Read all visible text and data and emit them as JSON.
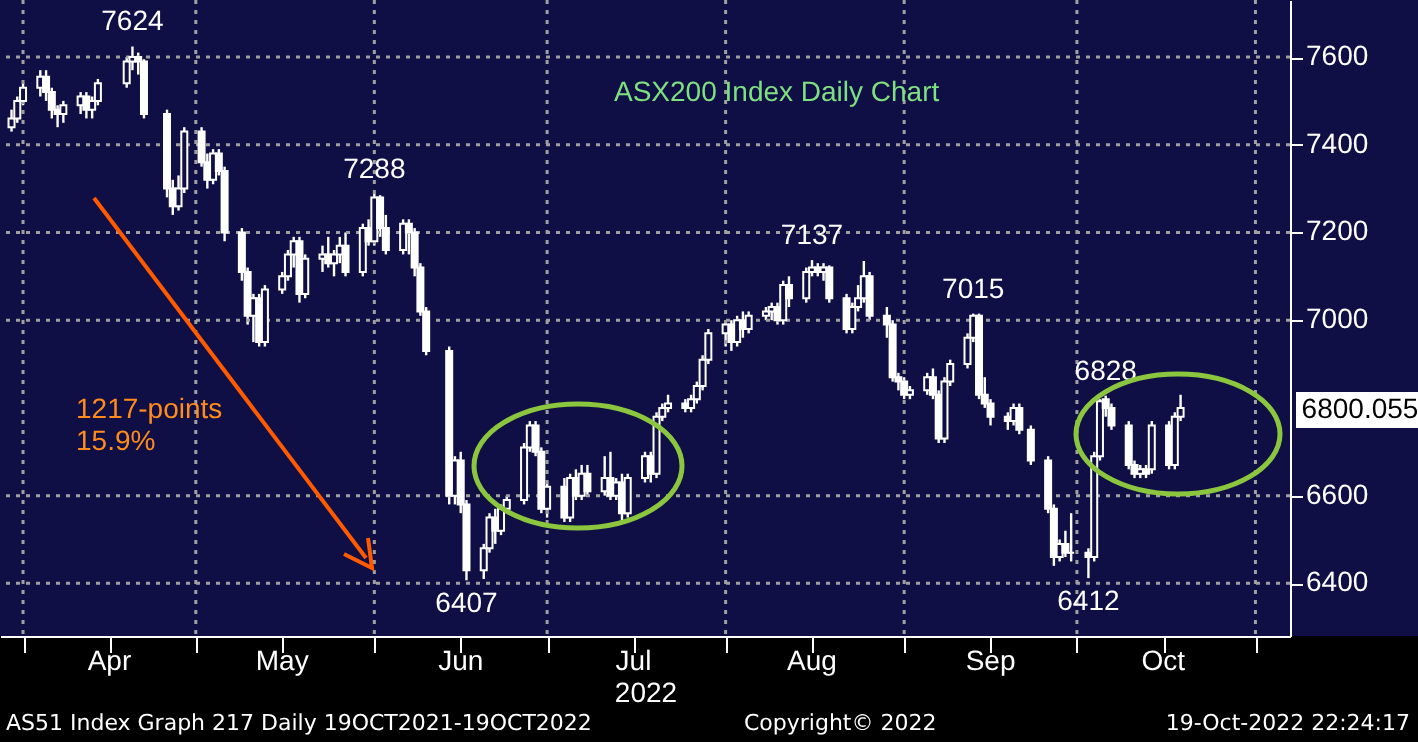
{
  "chart_data": {
    "type": "candlestick",
    "title": "ASX200 Index Daily Chart",
    "xlabel": "2022",
    "color": "#ffffff",
    "grid": true,
    "x": [
      "2022-03-30",
      "2022-03-31",
      "2022-04-01",
      "2022-04-04",
      "2022-04-05",
      "2022-04-06",
      "2022-04-07",
      "2022-04-08",
      "2022-04-11",
      "2022-04-12",
      "2022-04-13",
      "2022-04-14",
      "2022-04-19",
      "2022-04-20",
      "2022-04-21",
      "2022-04-22",
      "2022-04-26",
      "2022-04-27",
      "2022-04-28",
      "2022-04-29",
      "2022-05-02",
      "2022-05-03",
      "2022-05-04",
      "2022-05-05",
      "2022-05-06",
      "2022-05-09",
      "2022-05-10",
      "2022-05-11",
      "2022-05-12",
      "2022-05-13",
      "2022-05-16",
      "2022-05-17",
      "2022-05-18",
      "2022-05-19",
      "2022-05-20",
      "2022-05-23",
      "2022-05-24",
      "2022-05-25",
      "2022-05-26",
      "2022-05-27",
      "2022-05-30",
      "2022-05-31",
      "2022-06-01",
      "2022-06-02",
      "2022-06-03",
      "2022-06-06",
      "2022-06-07",
      "2022-06-08",
      "2022-06-09",
      "2022-06-10",
      "2022-06-14",
      "2022-06-15",
      "2022-06-16",
      "2022-06-17",
      "2022-06-20",
      "2022-06-21",
      "2022-06-22",
      "2022-06-23",
      "2022-06-24",
      "2022-06-27",
      "2022-06-28",
      "2022-06-29",
      "2022-06-30",
      "2022-07-01",
      "2022-07-04",
      "2022-07-05",
      "2022-07-06",
      "2022-07-07",
      "2022-07-08",
      "2022-07-11",
      "2022-07-12",
      "2022-07-13",
      "2022-07-14",
      "2022-07-15",
      "2022-07-18",
      "2022-07-19",
      "2022-07-20",
      "2022-07-21",
      "2022-07-22",
      "2022-07-25",
      "2022-07-26",
      "2022-07-27",
      "2022-07-28",
      "2022-07-29",
      "2022-08-01",
      "2022-08-02",
      "2022-08-03",
      "2022-08-04",
      "2022-08-05",
      "2022-08-08",
      "2022-08-09",
      "2022-08-10",
      "2022-08-11",
      "2022-08-12",
      "2022-08-15",
      "2022-08-16",
      "2022-08-17",
      "2022-08-18",
      "2022-08-19",
      "2022-08-22",
      "2022-08-23",
      "2022-08-24",
      "2022-08-25",
      "2022-08-26",
      "2022-08-29",
      "2022-08-30",
      "2022-08-31",
      "2022-09-01",
      "2022-09-02",
      "2022-09-05",
      "2022-09-06",
      "2022-09-07",
      "2022-09-08",
      "2022-09-09",
      "2022-09-12",
      "2022-09-13",
      "2022-09-14",
      "2022-09-15",
      "2022-09-16",
      "2022-09-19",
      "2022-09-20",
      "2022-09-21",
      "2022-09-23",
      "2022-09-26",
      "2022-09-27",
      "2022-09-28",
      "2022-09-29",
      "2022-09-30",
      "2022-10-03",
      "2022-10-04",
      "2022-10-05",
      "2022-10-06",
      "2022-10-07",
      "2022-10-10",
      "2022-10-11",
      "2022-10-12",
      "2022-10-13",
      "2022-10-14",
      "2022-10-17",
      "2022-10-18",
      "2022-10-19"
    ],
    "ohlc": [
      [
        7440,
        7480,
        7430,
        7460
      ],
      [
        7460,
        7510,
        7450,
        7500
      ],
      [
        7500,
        7540,
        7490,
        7530
      ],
      [
        7530,
        7570,
        7510,
        7555
      ],
      [
        7555,
        7570,
        7500,
        7520
      ],
      [
        7520,
        7530,
        7460,
        7480
      ],
      [
        7480,
        7490,
        7440,
        7470
      ],
      [
        7470,
        7500,
        7450,
        7490
      ],
      [
        7490,
        7520,
        7470,
        7510
      ],
      [
        7510,
        7520,
        7460,
        7480
      ],
      [
        7480,
        7510,
        7460,
        7500
      ],
      [
        7500,
        7550,
        7490,
        7540
      ],
      [
        7540,
        7600,
        7530,
        7590
      ],
      [
        7590,
        7624,
        7570,
        7600
      ],
      [
        7600,
        7610,
        7560,
        7590
      ],
      [
        7590,
        7595,
        7460,
        7470
      ],
      [
        7470,
        7480,
        7280,
        7300
      ],
      [
        7300,
        7320,
        7240,
        7260
      ],
      [
        7260,
        7330,
        7250,
        7300
      ],
      [
        7300,
        7440,
        7290,
        7430
      ],
      [
        7430,
        7440,
        7350,
        7360
      ],
      [
        7360,
        7380,
        7300,
        7320
      ],
      [
        7320,
        7390,
        7310,
        7380
      ],
      [
        7380,
        7390,
        7330,
        7340
      ],
      [
        7340,
        7350,
        7180,
        7200
      ],
      [
        7200,
        7210,
        7090,
        7110
      ],
      [
        7110,
        7120,
        6990,
        7010
      ],
      [
        7010,
        7060,
        6950,
        7050
      ],
      [
        7050,
        7060,
        6940,
        6950
      ],
      [
        6950,
        7080,
        6940,
        7070
      ],
      [
        7070,
        7110,
        7060,
        7100
      ],
      [
        7100,
        7160,
        7090,
        7150
      ],
      [
        7150,
        7190,
        7120,
        7180
      ],
      [
        7180,
        7190,
        7040,
        7060
      ],
      [
        7060,
        7150,
        7050,
        7140
      ],
      [
        7140,
        7170,
        7110,
        7150
      ],
      [
        7150,
        7190,
        7120,
        7130
      ],
      [
        7130,
        7160,
        7100,
        7150
      ],
      [
        7150,
        7190,
        7130,
        7170
      ],
      [
        7170,
        7200,
        7100,
        7110
      ],
      [
        7110,
        7220,
        7100,
        7210
      ],
      [
        7210,
        7230,
        7170,
        7180
      ],
      [
        7180,
        7288,
        7170,
        7280
      ],
      [
        7280,
        7285,
        7190,
        7210
      ],
      [
        7210,
        7240,
        7150,
        7160
      ],
      [
        7160,
        7230,
        7150,
        7220
      ],
      [
        7220,
        7230,
        7150,
        7200
      ],
      [
        7200,
        7210,
        7100,
        7120
      ],
      [
        7120,
        7130,
        7010,
        7020
      ],
      [
        7020,
        7030,
        6920,
        6930
      ],
      [
        6930,
        6940,
        6580,
        6600
      ],
      [
        6600,
        6690,
        6580,
        6680
      ],
      [
        6680,
        6700,
        6560,
        6580
      ],
      [
        6580,
        6590,
        6407,
        6430
      ],
      [
        6430,
        6490,
        6410,
        6480
      ],
      [
        6480,
        6560,
        6470,
        6550
      ],
      [
        6550,
        6570,
        6490,
        6520
      ],
      [
        6520,
        6580,
        6510,
        6570
      ],
      [
        6570,
        6600,
        6560,
        6590
      ],
      [
        6590,
        6720,
        6580,
        6710
      ],
      [
        6710,
        6770,
        6700,
        6760
      ],
      [
        6760,
        6770,
        6690,
        6700
      ],
      [
        6700,
        6710,
        6560,
        6570
      ],
      [
        6570,
        6630,
        6550,
        6620
      ],
      [
        6620,
        6640,
        6540,
        6550
      ],
      [
        6550,
        6650,
        6540,
        6640
      ],
      [
        6640,
        6660,
        6590,
        6600
      ],
      [
        6600,
        6670,
        6590,
        6650
      ],
      [
        6650,
        6670,
        6600,
        6610
      ],
      [
        6610,
        6690,
        6600,
        6640
      ],
      [
        6640,
        6700,
        6590,
        6600
      ],
      [
        6600,
        6640,
        6590,
        6630
      ],
      [
        6630,
        6650,
        6540,
        6560
      ],
      [
        6560,
        6650,
        6550,
        6640
      ],
      [
        6640,
        6700,
        6630,
        6690
      ],
      [
        6690,
        6700,
        6630,
        6650
      ],
      [
        6650,
        6790,
        6640,
        6780
      ],
      [
        6780,
        6810,
        6770,
        6800
      ],
      [
        6800,
        6830,
        6790,
        6810
      ],
      [
        6810,
        6820,
        6790,
        6800
      ],
      [
        6800,
        6830,
        6790,
        6820
      ],
      [
        6820,
        6860,
        6810,
        6850
      ],
      [
        6850,
        6920,
        6840,
        6910
      ],
      [
        6910,
        6980,
        6900,
        6970
      ],
      [
        6970,
        7000,
        6940,
        6990
      ],
      [
        6990,
        7000,
        6930,
        6950
      ],
      [
        6950,
        7010,
        6940,
        7000
      ],
      [
        7000,
        7020,
        6960,
        6980
      ],
      [
        6980,
        7020,
        6970,
        7010
      ],
      [
        7010,
        7030,
        7000,
        7020
      ],
      [
        7020,
        7040,
        7000,
        7030
      ],
      [
        7030,
        7040,
        6990,
        7000
      ],
      [
        7000,
        7090,
        6990,
        7080
      ],
      [
        7080,
        7100,
        7030,
        7050
      ],
      [
        7050,
        7120,
        7040,
        7110
      ],
      [
        7110,
        7137,
        7100,
        7120
      ],
      [
        7120,
        7130,
        7100,
        7110
      ],
      [
        7110,
        7130,
        7090,
        7120
      ],
      [
        7120,
        7125,
        7040,
        7050
      ],
      [
        7050,
        7060,
        6970,
        6980
      ],
      [
        6980,
        7040,
        6970,
        7030
      ],
      [
        7030,
        7080,
        7020,
        7050
      ],
      [
        7050,
        7135,
        7040,
        7100
      ],
      [
        7100,
        7110,
        7000,
        7010
      ],
      [
        7010,
        7030,
        6960,
        6990
      ],
      [
        6990,
        7000,
        6860,
        6870
      ],
      [
        6870,
        6880,
        6840,
        6860
      ],
      [
        6860,
        6870,
        6820,
        6830
      ],
      [
        6830,
        6850,
        6820,
        6840
      ],
      [
        6840,
        6880,
        6830,
        6870
      ],
      [
        6870,
        6890,
        6820,
        6830
      ],
      [
        6830,
        6840,
        6720,
        6730
      ],
      [
        6730,
        6870,
        6720,
        6860
      ],
      [
        6860,
        6910,
        6850,
        6900
      ],
      [
        6900,
        6970,
        6890,
        6960
      ],
      [
        6960,
        7015,
        6950,
        7010
      ],
      [
        7010,
        7015,
        6820,
        6830
      ],
      [
        6830,
        6870,
        6800,
        6810
      ],
      [
        6810,
        6820,
        6760,
        6780
      ],
      [
        6780,
        6790,
        6750,
        6770
      ],
      [
        6770,
        6810,
        6760,
        6800
      ],
      [
        6800,
        6810,
        6740,
        6750
      ],
      [
        6750,
        6760,
        6670,
        6680
      ],
      [
        6680,
        6690,
        6560,
        6570
      ],
      [
        6570,
        6580,
        6440,
        6460
      ],
      [
        6460,
        6500,
        6450,
        6490
      ],
      [
        6490,
        6520,
        6460,
        6470
      ],
      [
        6470,
        6560,
        6450,
        6470
      ],
      [
        6470,
        6480,
        6412,
        6460
      ],
      [
        6460,
        6700,
        6450,
        6690
      ],
      [
        6690,
        6820,
        6680,
        6815
      ],
      [
        6820,
        6828,
        6780,
        6800
      ],
      [
        6800,
        6810,
        6750,
        6760
      ],
      [
        6760,
        6770,
        6660,
        6670
      ],
      [
        6670,
        6680,
        6640,
        6650
      ],
      [
        6650,
        6670,
        6640,
        6660
      ],
      [
        6660,
        6670,
        6640,
        6650
      ],
      [
        6660,
        6770,
        6650,
        6760
      ],
      [
        6760,
        6770,
        6660,
        6670
      ],
      [
        6670,
        6790,
        6660,
        6780
      ],
      [
        6780,
        6830,
        6770,
        6800.055
      ]
    ],
    "xlim": [
      "2022-03-28",
      "2022-11-07"
    ],
    "xticks": [
      {
        "value": "2022-04-01",
        "label": null
      },
      {
        "value": "2022-04-16",
        "label": "Apr"
      },
      {
        "value": "2022-05-01",
        "label": null
      },
      {
        "value": "2022-05-16",
        "label": "May"
      },
      {
        "value": "2022-06-01",
        "label": null
      },
      {
        "value": "2022-06-16",
        "label": "Jun"
      },
      {
        "value": "2022-07-01",
        "label": null
      },
      {
        "value": "2022-07-16",
        "label": "Jul"
      },
      {
        "value": "2022-08-01",
        "label": null
      },
      {
        "value": "2022-08-16",
        "label": "Aug"
      },
      {
        "value": "2022-09-01",
        "label": null
      },
      {
        "value": "2022-09-16",
        "label": "Sep"
      },
      {
        "value": "2022-10-01",
        "label": null
      },
      {
        "value": "2022-10-16",
        "label": "Oct"
      },
      {
        "value": "2022-11-01",
        "label": null
      }
    ],
    "ylim": [
      6280,
      7730
    ],
    "yticks": [
      6400,
      6600,
      7000,
      7200,
      7400,
      7600
    ],
    "annotations": [
      {
        "text": "7624",
        "x": "2022-04-20",
        "y": 7624
      },
      {
        "text": "7288",
        "x": "2022-06-01",
        "y": 7288
      },
      {
        "text": "6407",
        "x": "2022-06-17",
        "y": 6407
      },
      {
        "text": "7137",
        "x": "2022-08-16",
        "y": 7137
      },
      {
        "text": "7015",
        "x": "2022-09-13",
        "y": 7015
      },
      {
        "text": "6828",
        "x": "2022-10-06",
        "y": 6828
      },
      {
        "text": "6412",
        "x": "2022-10-03",
        "y": 6412
      },
      "6800.055",
      "1217-points",
      "15.9%",
      "AS51 Index Graph 217  Daily 19OCT2021-19OCT2022",
      "Copyright© 2022",
      "19-Oct-2022 22:24:17"
    ]
  }
}
